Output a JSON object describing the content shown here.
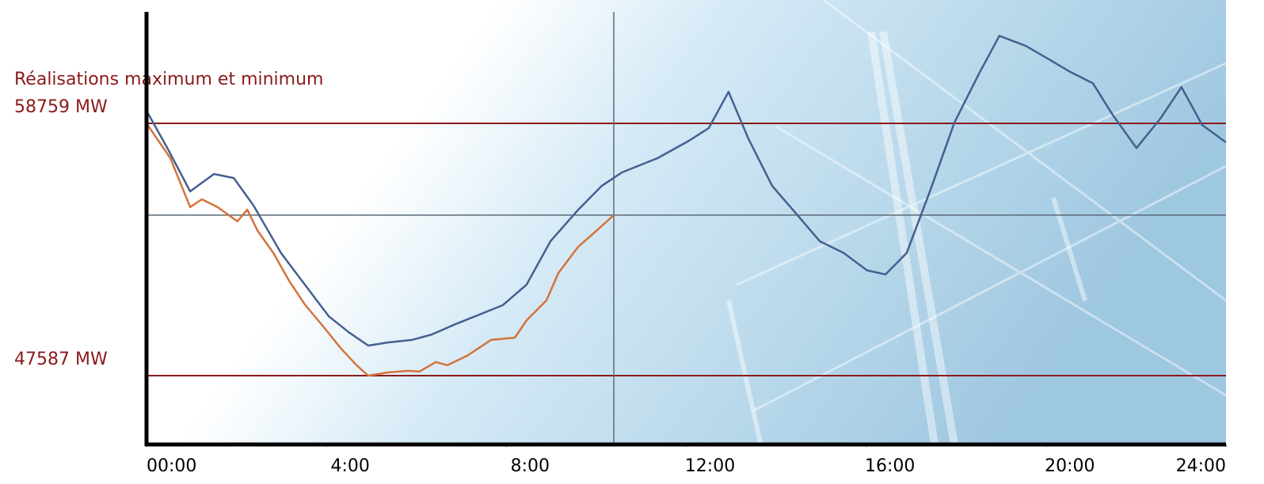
{
  "chart_data": {
    "type": "line",
    "title": "Réalisations maximum et minimum",
    "xlim": [
      0,
      24
    ],
    "ylim": [
      44540,
      63700
    ],
    "xticks": [
      {
        "value": 0,
        "label": "00:00"
      },
      {
        "value": 4,
        "label": "4:00"
      },
      {
        "value": 8,
        "label": "8:00"
      },
      {
        "value": 12,
        "label": "12:00"
      },
      {
        "value": 16,
        "label": "16:00"
      },
      {
        "value": 20,
        "label": "20:00"
      },
      {
        "value": 24,
        "label": "24:00"
      }
    ],
    "reference_lines": [
      {
        "value": 58759,
        "label": "58759 MW",
        "color": "#8b1a1a"
      },
      {
        "value": 47587,
        "label": "47587 MW",
        "color": "#8b1a1a"
      }
    ],
    "series": [
      {
        "color": "#45608f",
        "x": [
          0,
          0.49,
          0.97,
          1.5,
          1.94,
          2.38,
          2.99,
          3.52,
          4.05,
          4.49,
          4.93,
          5.37,
          5.9,
          6.34,
          6.87,
          7.4,
          7.92,
          8.45,
          8.98,
          9.6,
          10.12,
          10.57,
          11.36,
          12.06,
          12.5,
          12.94,
          13.38,
          13.91,
          14.44,
          14.97,
          15.5,
          16.02,
          16.43,
          16.9,
          17.43,
          17.96,
          18.49,
          18.96,
          19.55,
          20.07,
          20.51,
          21.04,
          21.48,
          22.01,
          22.54,
          23.01,
          23.47,
          24
        ],
        "values": [
          59320,
          57570,
          55750,
          56520,
          56340,
          55120,
          53020,
          51620,
          50220,
          49520,
          48920,
          49060,
          49170,
          49410,
          49870,
          50290,
          50710,
          51620,
          53540,
          54940,
          55990,
          56590,
          57220,
          57990,
          58550,
          60160,
          58090,
          55990,
          54770,
          53540,
          53020,
          52250,
          52070,
          53020,
          55820,
          58790,
          60890,
          62640,
          62190,
          61590,
          61070,
          60540,
          59140,
          57670,
          58970,
          60370,
          58690,
          57920
        ]
      },
      {
        "color": "#d4733c",
        "x": [
          0,
          0.53,
          0.97,
          1.23,
          1.58,
          2.02,
          2.24,
          2.47,
          2.82,
          3.17,
          3.52,
          3.96,
          4.31,
          4.67,
          4.93,
          5.37,
          5.81,
          6.07,
          6.43,
          6.69,
          7.13,
          7.66,
          8.19,
          8.45,
          8.89,
          9.16,
          9.6,
          10.04,
          10.39
        ],
        "values": [
          58759,
          57220,
          55050,
          55400,
          55050,
          54420,
          54940,
          54000,
          53020,
          51790,
          50740,
          49690,
          48820,
          48050,
          47587,
          47730,
          47800,
          47770,
          48190,
          48050,
          48470,
          49170,
          49270,
          50040,
          50920,
          52140,
          53300,
          54070,
          54700
        ]
      }
    ]
  }
}
